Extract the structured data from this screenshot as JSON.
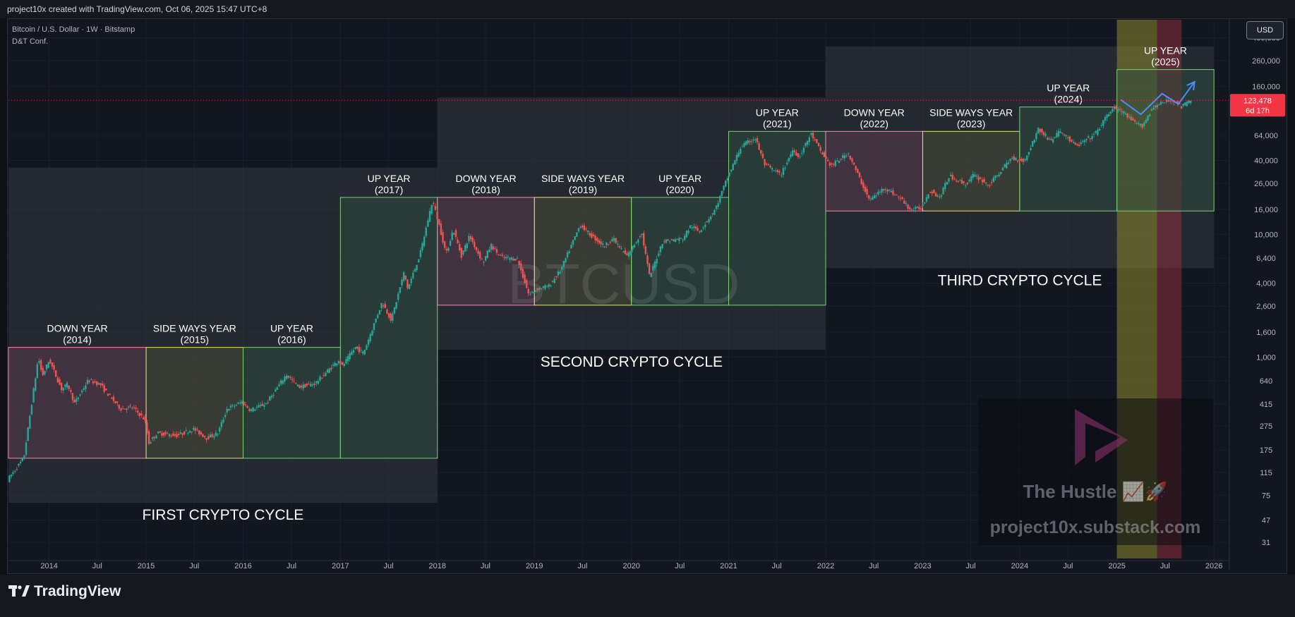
{
  "header": {
    "caption": "project10x created with TradingView.com, Oct 06, 2025 15:47 UTC+8"
  },
  "legend": {
    "symbol_line": "Bitcoin / U.S. Dollar · 1W · Bitstamp",
    "indicator": "D&T Conf."
  },
  "currency_button": "USD",
  "footer": {
    "brand": "TradingView"
  },
  "chart_data": {
    "type": "candlestick",
    "symbol": "BTCUSD",
    "watermark": "BTCUSD",
    "y_scale": "log",
    "ylim": [
      22,
      560000
    ],
    "x_range": [
      "2013-08-01",
      "2026-02-28"
    ],
    "price_labels": [
      {
        "v": 400000,
        "t": "400,000"
      },
      {
        "v": 260000,
        "t": "260,000"
      },
      {
        "v": 160000,
        "t": "160,000"
      },
      {
        "v": 64000,
        "t": "64,000"
      },
      {
        "v": 40000,
        "t": "40,000"
      },
      {
        "v": 26000,
        "t": "26,000"
      },
      {
        "v": 16000,
        "t": "16,000"
      },
      {
        "v": 10000,
        "t": "10,000"
      },
      {
        "v": 6400,
        "t": "6,400"
      },
      {
        "v": 4000,
        "t": "4,000"
      },
      {
        "v": 2600,
        "t": "2,600"
      },
      {
        "v": 1600,
        "t": "1,600"
      },
      {
        "v": 1000,
        "t": "1,000"
      },
      {
        "v": 640,
        "t": "640"
      },
      {
        "v": 415,
        "t": "415"
      },
      {
        "v": 275,
        "t": "275"
      },
      {
        "v": 175,
        "t": "175"
      },
      {
        "v": 115,
        "t": "115"
      },
      {
        "v": 75,
        "t": "75"
      },
      {
        "v": 47,
        "t": "47"
      },
      {
        "v": 31,
        "t": "31"
      }
    ],
    "time_labels": [
      {
        "d": "2014-01-01",
        "t": "2014"
      },
      {
        "d": "2014-07-01",
        "t": "Jul"
      },
      {
        "d": "2015-01-01",
        "t": "2015"
      },
      {
        "d": "2015-07-01",
        "t": "Jul"
      },
      {
        "d": "2016-01-01",
        "t": "2016"
      },
      {
        "d": "2016-07-01",
        "t": "Jul"
      },
      {
        "d": "2017-01-01",
        "t": "2017"
      },
      {
        "d": "2017-07-01",
        "t": "Jul"
      },
      {
        "d": "2018-01-01",
        "t": "2018"
      },
      {
        "d": "2018-07-01",
        "t": "Jul"
      },
      {
        "d": "2019-01-01",
        "t": "2019"
      },
      {
        "d": "2019-07-01",
        "t": "Jul"
      },
      {
        "d": "2020-01-01",
        "t": "2020"
      },
      {
        "d": "2020-07-01",
        "t": "Jul"
      },
      {
        "d": "2021-01-01",
        "t": "2021"
      },
      {
        "d": "2021-07-01",
        "t": "Jul"
      },
      {
        "d": "2022-01-01",
        "t": "2022"
      },
      {
        "d": "2022-07-01",
        "t": "Jul"
      },
      {
        "d": "2023-01-01",
        "t": "2023"
      },
      {
        "d": "2023-07-01",
        "t": "Jul"
      },
      {
        "d": "2024-01-01",
        "t": "2024"
      },
      {
        "d": "2024-07-01",
        "t": "Jul"
      },
      {
        "d": "2025-01-01",
        "t": "2025"
      },
      {
        "d": "2025-07-01",
        "t": "Jul"
      },
      {
        "d": "2026-01-01",
        "t": "2026"
      }
    ],
    "last_price": {
      "value": 123478,
      "label": "123,478",
      "countdown": "6d 17h",
      "color": "#f23645"
    },
    "price_path": [
      [
        "2013-08-01",
        100
      ],
      [
        "2013-10-01",
        150
      ],
      [
        "2013-11-25",
        1000
      ],
      [
        "2013-12-10",
        700
      ],
      [
        "2014-01-05",
        950
      ],
      [
        "2014-02-20",
        550
      ],
      [
        "2014-03-15",
        600
      ],
      [
        "2014-04-10",
        420
      ],
      [
        "2014-06-01",
        650
      ],
      [
        "2014-07-15",
        600
      ],
      [
        "2014-08-20",
        480
      ],
      [
        "2014-10-01",
        380
      ],
      [
        "2014-11-15",
        390
      ],
      [
        "2014-12-30",
        310
      ],
      [
        "2015-01-15",
        200
      ],
      [
        "2015-02-15",
        240
      ],
      [
        "2015-05-01",
        230
      ],
      [
        "2015-07-01",
        260
      ],
      [
        "2015-08-20",
        220
      ],
      [
        "2015-10-01",
        240
      ],
      [
        "2015-11-05",
        380
      ],
      [
        "2015-12-31",
        430
      ],
      [
        "2016-02-01",
        370
      ],
      [
        "2016-04-01",
        420
      ],
      [
        "2016-06-15",
        720
      ],
      [
        "2016-08-01",
        570
      ],
      [
        "2016-10-01",
        610
      ],
      [
        "2016-12-31",
        960
      ],
      [
        "2017-01-10",
        830
      ],
      [
        "2017-03-01",
        1200
      ],
      [
        "2017-04-01",
        1080
      ],
      [
        "2017-06-10",
        2800
      ],
      [
        "2017-07-15",
        2000
      ],
      [
        "2017-09-01",
        4900
      ],
      [
        "2017-09-15",
        3600
      ],
      [
        "2017-11-01",
        7000
      ],
      [
        "2017-12-17",
        19000
      ],
      [
        "2018-01-15",
        11000
      ],
      [
        "2018-02-06",
        6900
      ],
      [
        "2018-03-05",
        11000
      ],
      [
        "2018-04-05",
        6700
      ],
      [
        "2018-05-05",
        9700
      ],
      [
        "2018-06-25",
        5900
      ],
      [
        "2018-07-25",
        8200
      ],
      [
        "2018-09-01",
        6500
      ],
      [
        "2018-11-01",
        6300
      ],
      [
        "2018-12-15",
        3200
      ],
      [
        "2019-01-15",
        3600
      ],
      [
        "2019-03-01",
        3800
      ],
      [
        "2019-04-15",
        5200
      ],
      [
        "2019-06-26",
        12000
      ],
      [
        "2019-08-01",
        10000
      ],
      [
        "2019-09-25",
        8000
      ],
      [
        "2019-10-26",
        9300
      ],
      [
        "2019-12-18",
        6600
      ],
      [
        "2020-02-12",
        10300
      ],
      [
        "2020-03-13",
        4500
      ],
      [
        "2020-05-01",
        8800
      ],
      [
        "2020-07-15",
        9200
      ],
      [
        "2020-08-15",
        11800
      ],
      [
        "2020-09-15",
        10500
      ],
      [
        "2020-11-15",
        16000
      ],
      [
        "2020-12-31",
        29000
      ],
      [
        "2021-02-20",
        52000
      ],
      [
        "2021-04-14",
        61000
      ],
      [
        "2021-05-20",
        37000
      ],
      [
        "2021-07-20",
        30500
      ],
      [
        "2021-09-05",
        50000
      ],
      [
        "2021-09-25",
        42000
      ],
      [
        "2021-11-10",
        66000
      ],
      [
        "2021-12-20",
        46000
      ],
      [
        "2022-01-25",
        36000
      ],
      [
        "2022-03-30",
        46000
      ],
      [
        "2022-06-18",
        19000
      ],
      [
        "2022-08-15",
        24000
      ],
      [
        "2022-10-15",
        19500
      ],
      [
        "2022-11-21",
        15800
      ],
      [
        "2022-12-31",
        16500
      ],
      [
        "2023-01-31",
        23000
      ],
      [
        "2023-03-10",
        20000
      ],
      [
        "2023-04-14",
        30000
      ],
      [
        "2023-06-15",
        25500
      ],
      [
        "2023-07-15",
        30500
      ],
      [
        "2023-09-11",
        25200
      ],
      [
        "2023-12-05",
        42000
      ],
      [
        "2024-01-23",
        39500
      ],
      [
        "2024-03-14",
        72000
      ],
      [
        "2024-05-01",
        58000
      ],
      [
        "2024-06-05",
        70000
      ],
      [
        "2024-08-05",
        52000
      ],
      [
        "2024-10-15",
        66000
      ],
      [
        "2024-12-17",
        106000
      ],
      [
        "2025-01-20",
        102000
      ],
      [
        "2025-03-01",
        84000
      ],
      [
        "2025-04-08",
        76000
      ],
      [
        "2025-05-22",
        110000
      ],
      [
        "2025-07-14",
        122000
      ],
      [
        "2025-08-14",
        123000
      ],
      [
        "2025-09-01",
        108000
      ],
      [
        "2025-10-06",
        123478
      ]
    ],
    "cycle_boxes": [
      {
        "label": "FIRST CRYPTO CYCLE",
        "from": "2013-08-01",
        "to": "2018-01-01",
        "high": 35000,
        "low": 65
      },
      {
        "label": "SECOND CRYPTO CYCLE",
        "from": "2018-01-01",
        "to": "2022-01-01",
        "high": 130000,
        "low": 1150
      },
      {
        "label": "THIRD CRYPTO CYCLE",
        "from": "2022-01-01",
        "to": "2026-01-01",
        "high": 340000,
        "low": 5300
      }
    ],
    "year_boxes": [
      {
        "title": "DOWN YEAR",
        "year": "(2014)",
        "kind": "down",
        "from": "2013-08-01",
        "to": "2015-01-01",
        "high": 1200,
        "low": 150
      },
      {
        "title": "SIDE WAYS YEAR",
        "year": "(2015)",
        "kind": "side",
        "from": "2015-01-01",
        "to": "2016-01-01",
        "high": 1200,
        "low": 150
      },
      {
        "title": "UP YEAR",
        "year": "(2016)",
        "kind": "up",
        "from": "2016-01-01",
        "to": "2017-01-01",
        "high": 1200,
        "low": 150
      },
      {
        "title": "UP YEAR",
        "year": "(2017)",
        "kind": "up",
        "from": "2017-01-01",
        "to": "2018-01-01",
        "high": 20000,
        "low": 150
      },
      {
        "title": "DOWN YEAR",
        "year": "(2018)",
        "kind": "down",
        "from": "2018-01-01",
        "to": "2019-01-01",
        "high": 20000,
        "low": 2650
      },
      {
        "title": "SIDE WAYS YEAR",
        "year": "(2019)",
        "kind": "side",
        "from": "2019-01-01",
        "to": "2020-01-01",
        "high": 20000,
        "low": 2650
      },
      {
        "title": "UP YEAR",
        "year": "(2020)",
        "kind": "up",
        "from": "2020-01-01",
        "to": "2021-01-01",
        "high": 20000,
        "low": 2650
      },
      {
        "title": "UP YEAR",
        "year": "(2021)",
        "kind": "up",
        "from": "2021-01-01",
        "to": "2022-01-01",
        "high": 69000,
        "low": 2650
      },
      {
        "title": "DOWN YEAR",
        "year": "(2022)",
        "kind": "down",
        "from": "2022-01-01",
        "to": "2023-01-01",
        "high": 69000,
        "low": 15500
      },
      {
        "title": "SIDE WAYS YEAR",
        "year": "(2023)",
        "kind": "side",
        "from": "2023-01-01",
        "to": "2024-01-01",
        "high": 69000,
        "low": 15500
      },
      {
        "title": "UP YEAR",
        "year": "(2024)",
        "kind": "up",
        "from": "2024-01-01",
        "to": "2025-01-01",
        "high": 109000,
        "low": 15500
      },
      {
        "title": "UP YEAR",
        "year": "(2025)",
        "kind": "up",
        "from": "2025-01-01",
        "to": "2026-01-01",
        "high": 220000,
        "low": 15500
      }
    ],
    "highlight_bands": [
      {
        "from": "2025-01-01",
        "to": "2025-06-01",
        "color": "#8c8a2e"
      },
      {
        "from": "2025-06-01",
        "to": "2025-09-01",
        "color": "#8c2d3a"
      }
    ],
    "projection": [
      [
        "2025-01-15",
        125000
      ],
      [
        "2025-04-01",
        95000
      ],
      [
        "2025-06-20",
        140000
      ],
      [
        "2025-08-20",
        115000
      ],
      [
        "2025-10-20",
        175000
      ]
    ],
    "colors": {
      "up": "#26a69a",
      "down": "#ef5350",
      "down_box": "#f48fb1",
      "side_box": "#e6e07a",
      "up_box": "#7bd17a",
      "projection": "#4c8dff"
    },
    "branding": {
      "brand_name": "The Hustle 📈🚀",
      "site": "project10x.substack.com"
    }
  }
}
